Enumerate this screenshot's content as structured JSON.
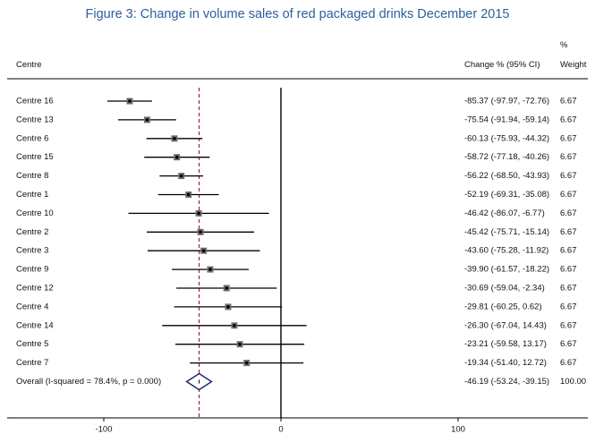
{
  "title": "Figure 3: Change in volume sales of red packaged drinks December 2015",
  "headers": {
    "centre": "Centre",
    "change": "Change % (95% CI)",
    "weight_symbol": "%",
    "weight": "Weight"
  },
  "chart_data": {
    "type": "forest",
    "title": "Figure 3: Change in volume sales of red packaged drinks December 2015",
    "xlim": [
      -140,
      170
    ],
    "xticks": [
      -100,
      0,
      100
    ],
    "null_line": 0,
    "pooled_line": -46.19,
    "studies": [
      {
        "label": "Centre 16",
        "estimate": -85.37,
        "lower": -97.97,
        "upper": -72.76,
        "ci_text": "-85.37 (-97.97, -72.76)",
        "weight": "6.67"
      },
      {
        "label": "Centre 13",
        "estimate": -75.54,
        "lower": -91.94,
        "upper": -59.14,
        "ci_text": "-75.54 (-91.94, -59.14)",
        "weight": "6.67"
      },
      {
        "label": "Centre 6",
        "estimate": -60.13,
        "lower": -75.93,
        "upper": -44.32,
        "ci_text": "-60.13 (-75.93, -44.32)",
        "weight": "6.67"
      },
      {
        "label": "Centre 15",
        "estimate": -58.72,
        "lower": -77.18,
        "upper": -40.26,
        "ci_text": "-58.72 (-77.18, -40.26)",
        "weight": "6.67"
      },
      {
        "label": "Centre 8",
        "estimate": -56.22,
        "lower": -68.5,
        "upper": -43.93,
        "ci_text": "-56.22 (-68.50, -43.93)",
        "weight": "6.67"
      },
      {
        "label": "Centre 1",
        "estimate": -52.19,
        "lower": -69.31,
        "upper": -35.08,
        "ci_text": "-52.19 (-69.31, -35.08)",
        "weight": "6.67"
      },
      {
        "label": "Centre 10",
        "estimate": -46.42,
        "lower": -86.07,
        "upper": -6.77,
        "ci_text": "-46.42 (-86.07, -6.77)",
        "weight": "6.67"
      },
      {
        "label": "Centre 2",
        "estimate": -45.42,
        "lower": -75.71,
        "upper": -15.14,
        "ci_text": "-45.42 (-75.71, -15.14)",
        "weight": "6.67"
      },
      {
        "label": "Centre 3",
        "estimate": -43.6,
        "lower": -75.28,
        "upper": -11.92,
        "ci_text": "-43.60 (-75.28, -11.92)",
        "weight": "6.67"
      },
      {
        "label": "Centre 9",
        "estimate": -39.9,
        "lower": -61.57,
        "upper": -18.22,
        "ci_text": "-39.90 (-61.57, -18.22)",
        "weight": "6.67"
      },
      {
        "label": "Centre 12",
        "estimate": -30.69,
        "lower": -59.04,
        "upper": -2.34,
        "ci_text": "-30.69 (-59.04, -2.34)",
        "weight": "6.67"
      },
      {
        "label": "Centre 4",
        "estimate": -29.81,
        "lower": -60.25,
        "upper": 0.62,
        "ci_text": "-29.81 (-60.25, 0.62)",
        "weight": "6.67"
      },
      {
        "label": "Centre 14",
        "estimate": -26.3,
        "lower": -67.04,
        "upper": 14.43,
        "ci_text": "-26.30 (-67.04, 14.43)",
        "weight": "6.67"
      },
      {
        "label": "Centre 5",
        "estimate": -23.21,
        "lower": -59.58,
        "upper": 13.17,
        "ci_text": "-23.21 (-59.58, 13.17)",
        "weight": "6.67"
      },
      {
        "label": "Centre 7",
        "estimate": -19.34,
        "lower": -51.4,
        "upper": 12.72,
        "ci_text": "-19.34 (-51.40, 12.72)",
        "weight": "6.67"
      }
    ],
    "overall": {
      "label": "Overall  (I-squared = 78.4%, p = 0.000)",
      "estimate": -46.19,
      "lower": -53.24,
      "upper": -39.15,
      "ci_text": "-46.19 (-53.24, -39.15)",
      "weight": "100.00"
    },
    "colors": {
      "title": "#2e5e9e",
      "pooled_line": "#b01e2a",
      "diamond": "#1f1f7a",
      "lines": "#000000"
    }
  }
}
